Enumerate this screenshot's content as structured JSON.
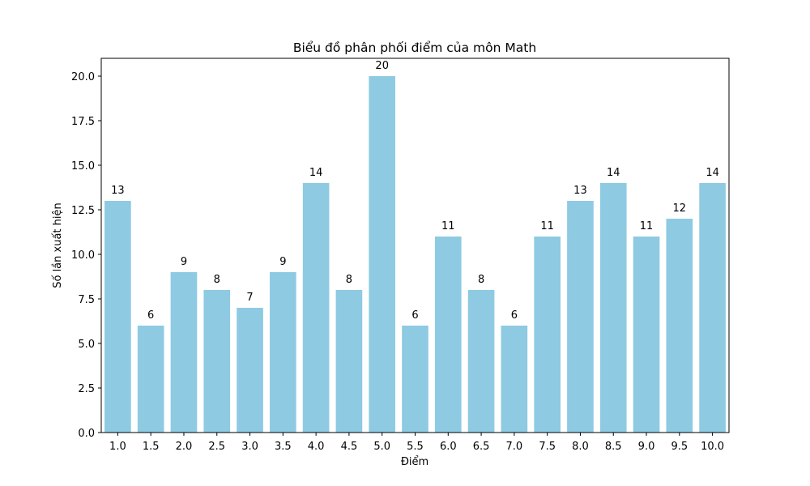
{
  "chart_data": {
    "type": "bar",
    "title": "Biểu đồ phân phối điểm của môn  Math",
    "xlabel": "Điểm",
    "ylabel": "Số lần xuất hiện",
    "categories": [
      "1.0",
      "1.5",
      "2.0",
      "2.5",
      "3.0",
      "3.5",
      "4.0",
      "4.5",
      "5.0",
      "5.5",
      "6.0",
      "6.5",
      "7.0",
      "7.5",
      "8.0",
      "8.5",
      "9.0",
      "9.5",
      "10.0"
    ],
    "values": [
      13,
      6,
      9,
      8,
      7,
      9,
      14,
      8,
      20,
      6,
      11,
      8,
      6,
      11,
      13,
      14,
      11,
      12,
      14
    ],
    "ylim": [
      0,
      21
    ],
    "yticks": [
      0.0,
      2.5,
      5.0,
      7.5,
      10.0,
      12.5,
      15.0,
      17.5,
      20.0
    ],
    "ytick_labels": [
      "0.0",
      "2.5",
      "5.0",
      "7.5",
      "10.0",
      "12.5",
      "15.0",
      "17.5",
      "20.0"
    ],
    "bar_color": "#8ecae2",
    "grid": false,
    "legend": "none"
  }
}
